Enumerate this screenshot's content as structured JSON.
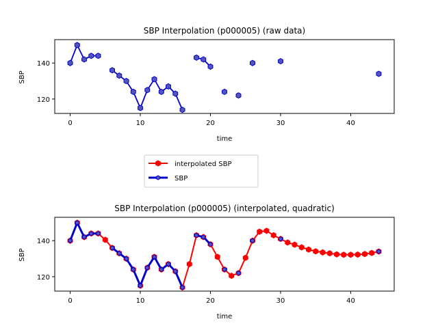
{
  "chart_data": [
    {
      "type": "line",
      "title": "SBP Interpolation (p000005) (raw data)",
      "xlabel": "time",
      "ylabel": "SBP",
      "xlim": [
        -2.2,
        46.2
      ],
      "ylim": [
        112,
        153
      ],
      "xticks": [
        0,
        10,
        20,
        30,
        40
      ],
      "yticks": [
        120,
        140
      ],
      "series": [
        {
          "name": "SBP",
          "color": "#0000cc",
          "marker_color": "#5555bb",
          "x": [
            0,
            1,
            2,
            3,
            4,
            6,
            7,
            8,
            9,
            10,
            11,
            12,
            13,
            14,
            15,
            16,
            18,
            19,
            20,
            22,
            24,
            26,
            30,
            44
          ],
          "y": [
            140,
            150,
            142,
            144,
            144,
            136,
            133,
            130,
            124,
            115,
            125,
            131,
            124,
            127,
            123,
            114,
            143,
            142,
            138,
            124,
            122,
            140,
            141,
            134
          ],
          "segments": [
            [
              0,
              4
            ],
            [
              6,
              16
            ],
            [
              18,
              20
            ]
          ]
        }
      ]
    },
    {
      "type": "line",
      "title": "SBP Interpolation (p000005) (interpolated, quadratic)",
      "xlabel": "time",
      "ylabel": "SBP",
      "xlim": [
        -2.2,
        46.2
      ],
      "ylim": [
        112,
        153
      ],
      "xticks": [
        0,
        10,
        20,
        30,
        40
      ],
      "yticks": [
        120,
        140
      ],
      "legend": {
        "placement": "between plots",
        "entries": [
          "interpolated SBP",
          "SBP"
        ]
      },
      "series": [
        {
          "name": "interpolated SBP",
          "color": "#ff0000",
          "x": [
            0,
            1,
            2,
            3,
            4,
            5,
            6,
            7,
            8,
            9,
            10,
            11,
            12,
            13,
            14,
            15,
            16,
            17,
            18,
            19,
            20,
            21,
            22,
            23,
            24,
            25,
            26,
            27,
            28,
            29,
            30,
            31,
            32,
            33,
            34,
            35,
            36,
            37,
            38,
            39,
            40,
            41,
            42,
            43,
            44
          ],
          "y": [
            140,
            150,
            142,
            144,
            144,
            140.5,
            136,
            133,
            130,
            124,
            115,
            125,
            131,
            124,
            127,
            123,
            114,
            127,
            143,
            142,
            138,
            131,
            124,
            120.5,
            122,
            130.5,
            140,
            145,
            145.5,
            143,
            141,
            139,
            137.8,
            136.3,
            135.1,
            134.1,
            133.5,
            133,
            132.4,
            132.2,
            132.2,
            132.3,
            132.6,
            133.2,
            134
          ]
        },
        {
          "name": "SBP",
          "color": "#0000cc",
          "marker_color": "#5555bb",
          "x": [
            0,
            1,
            2,
            3,
            4,
            6,
            7,
            8,
            9,
            10,
            11,
            12,
            13,
            14,
            15,
            16,
            18,
            19,
            20,
            22,
            24,
            26,
            30,
            44
          ],
          "y": [
            140,
            150,
            142,
            144,
            144,
            136,
            133,
            130,
            124,
            115,
            125,
            131,
            124,
            127,
            123,
            114,
            143,
            142,
            138,
            124,
            122,
            140,
            141,
            134
          ],
          "segments": [
            [
              0,
              4
            ],
            [
              6,
              16
            ],
            [
              18,
              20
            ]
          ]
        }
      ]
    }
  ]
}
